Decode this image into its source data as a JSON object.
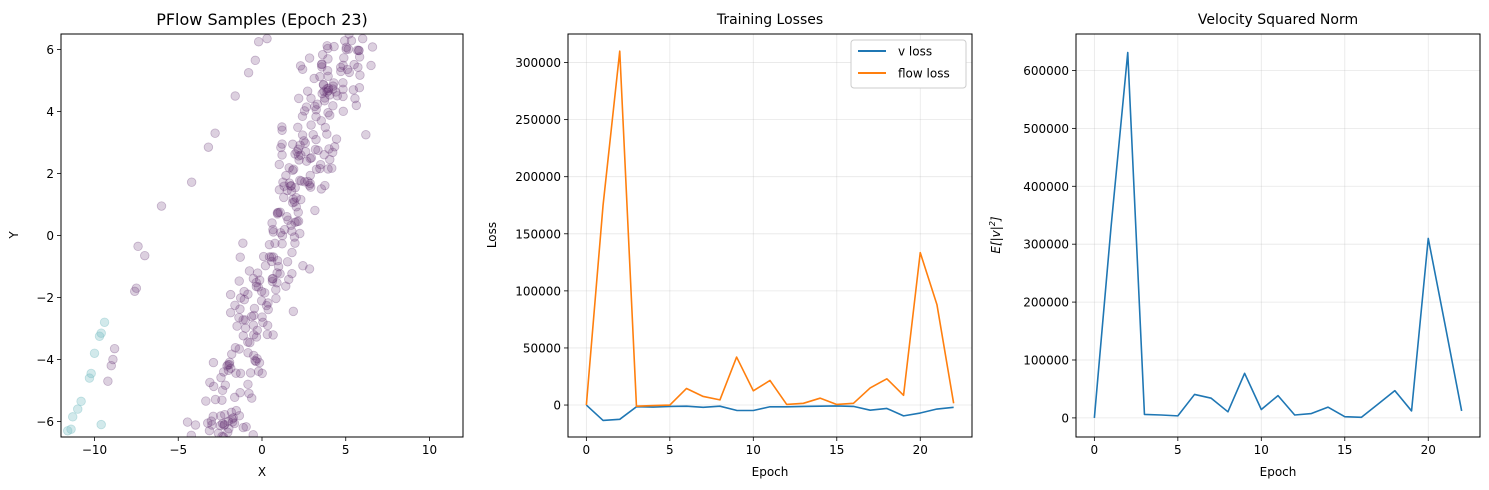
{
  "chart_data": [
    {
      "type": "scatter",
      "title": "PFlow Samples (Epoch 23)",
      "xlabel": "X",
      "ylabel": "Y",
      "xlim": [
        -12,
        12
      ],
      "ylim": [
        -6.5,
        6.5
      ],
      "xticks": [
        -10,
        -5,
        0,
        5,
        10
      ],
      "yticks": [
        -6,
        -4,
        -2,
        0,
        2,
        4,
        6
      ],
      "grid": false,
      "colors": {
        "main": "#5e2a6e",
        "tail": "#7fc0c6"
      },
      "tail_points": [
        [
          -11.6,
          -6.3
        ],
        [
          -11.4,
          -6.25
        ],
        [
          -11.3,
          -5.85
        ],
        [
          -11.0,
          -5.6
        ],
        [
          -10.8,
          -5.35
        ],
        [
          -10.3,
          -4.6
        ],
        [
          -10.2,
          -4.45
        ],
        [
          -10.0,
          -3.8
        ],
        [
          -9.7,
          -3.25
        ],
        [
          -9.6,
          -3.15
        ],
        [
          -9.4,
          -2.8
        ],
        [
          -9.6,
          -6.1
        ]
      ],
      "main_points": [
        [
          -7.6,
          -1.8
        ],
        [
          -7.5,
          -1.7
        ],
        [
          -7.4,
          -0.35
        ],
        [
          -7.0,
          -0.65
        ],
        [
          -6.0,
          0.95
        ],
        [
          -4.2,
          1.72
        ],
        [
          -3.2,
          2.85
        ],
        [
          -2.8,
          3.3
        ],
        [
          -1.6,
          4.5
        ],
        [
          -0.8,
          5.25
        ],
        [
          -0.4,
          5.65
        ],
        [
          -0.2,
          6.25
        ],
        [
          0.3,
          6.35
        ],
        [
          -8.9,
          -4.0
        ],
        [
          -9.0,
          -4.2
        ],
        [
          -8.8,
          -3.65
        ],
        [
          -9.2,
          -4.7
        ],
        [
          -2.9,
          -4.1
        ],
        [
          1.2,
          2.95
        ],
        [
          6.2,
          3.25
        ],
        [
          -1.3,
          -0.7
        ]
      ],
      "main_band": {
        "count": 300,
        "y_from": -6.5,
        "y_to": 6.5,
        "slope": 0.57,
        "center_x": 1.2,
        "spread": 1.6,
        "seed": 7
      }
    },
    {
      "type": "line",
      "title": "Training Losses",
      "xlabel": "Epoch",
      "ylabel": "Loss",
      "xlim": [
        -1.1,
        23.1
      ],
      "ylim": [
        -28000,
        325000
      ],
      "xticks": [
        0,
        5,
        10,
        15,
        20
      ],
      "yticks": [
        0,
        50000,
        100000,
        150000,
        200000,
        250000,
        300000
      ],
      "grid": true,
      "legend": "top-right",
      "x": [
        0,
        1,
        2,
        3,
        4,
        5,
        6,
        7,
        8,
        9,
        10,
        11,
        12,
        13,
        14,
        15,
        16,
        17,
        18,
        19,
        20,
        21,
        22
      ],
      "series": [
        {
          "name": "v loss",
          "color": "#1f77b4",
          "values": [
            0,
            -13500,
            -12500,
            -1500,
            -1800,
            -1200,
            -1000,
            -2000,
            -1000,
            -4700,
            -4800,
            -1500,
            -1600,
            -1200,
            -1000,
            -800,
            -1200,
            -4500,
            -3000,
            -9500,
            -7000,
            -3500,
            -2000
          ]
        },
        {
          "name": "flow loss",
          "color": "#ff7f0e",
          "values": [
            0,
            175000,
            310000,
            -1000,
            -500,
            0,
            14500,
            7500,
            4500,
            42000,
            12500,
            21500,
            500,
            1500,
            6000,
            500,
            1500,
            15000,
            23000,
            8500,
            133500,
            88000,
            1500
          ]
        }
      ]
    },
    {
      "type": "line",
      "title": "Velocity Squared Norm",
      "xlabel": "Epoch",
      "ylabel": "E[|v|²]",
      "xlim": [
        -1.1,
        23.1
      ],
      "ylim": [
        -33000,
        663000
      ],
      "xticks": [
        0,
        5,
        10,
        15,
        20
      ],
      "yticks": [
        0,
        100000,
        200000,
        300000,
        400000,
        500000,
        600000
      ],
      "grid": true,
      "x": [
        0,
        1,
        2,
        3,
        4,
        5,
        6,
        7,
        8,
        9,
        10,
        11,
        12,
        13,
        14,
        15,
        16,
        17,
        18,
        19,
        20,
        21,
        22
      ],
      "series": [
        {
          "name": "",
          "color": "#1f77b4",
          "values": [
            0,
            330000,
            631000,
            6000,
            5000,
            3500,
            40500,
            34000,
            10500,
            77000,
            14500,
            38500,
            5000,
            7500,
            18500,
            2000,
            1000,
            24000,
            47000,
            12000,
            310000,
            162000,
            12000
          ]
        }
      ]
    }
  ]
}
